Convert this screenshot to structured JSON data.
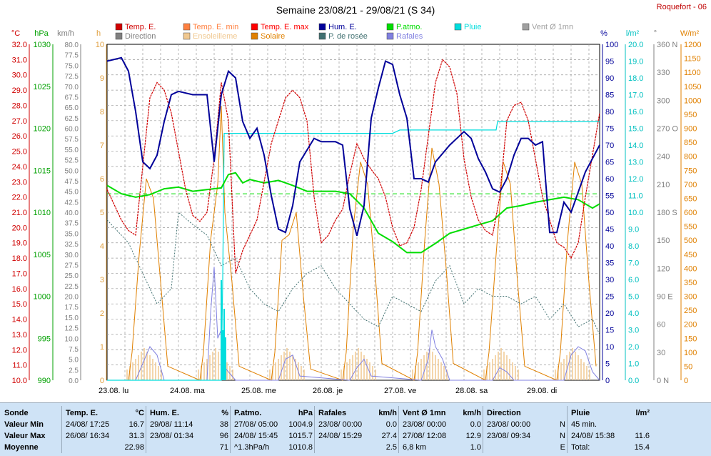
{
  "title": "Semaine 23/08/21 - 29/08/21 (S 34)",
  "station": "Roquefort - 06",
  "colors": {
    "temp": "#d00000",
    "tmin": "#ff8040",
    "tmax": "#ff0000",
    "hum": "#000099",
    "patm": "#00dd00",
    "rain": "#00dddd",
    "wind": "#a0a0a0",
    "dir": "#808080",
    "sun": "#f0c890",
    "solar": "#e08000",
    "dew": "#407070",
    "gust": "#8080e0"
  },
  "legend": [
    {
      "label": "Temp. E.",
      "color": "#d00000",
      "row": 0,
      "col": 0
    },
    {
      "label": "Temp. E. min",
      "color": "#ff8040",
      "row": 0,
      "col": 1
    },
    {
      "label": "Temp. E. max",
      "color": "#ff0000",
      "row": 0,
      "col": 2
    },
    {
      "label": "Hum. E.",
      "color": "#000099",
      "row": 0,
      "col": 3
    },
    {
      "label": "P.atmo.",
      "color": "#00dd00",
      "row": 0,
      "col": 4
    },
    {
      "label": "Pluie",
      "color": "#00dddd",
      "row": 0,
      "col": 5
    },
    {
      "label": "Vent Ø 1mn",
      "color": "#a0a0a0",
      "row": 0,
      "col": 6
    },
    {
      "label": "Direction",
      "color": "#808080",
      "row": 1,
      "col": 0
    },
    {
      "label": "Ensoleilleme",
      "color": "#f0c890",
      "row": 1,
      "col": 1
    },
    {
      "label": "Solaire",
      "color": "#e08000",
      "row": 1,
      "col": 2
    },
    {
      "label": "P. de rosée",
      "color": "#407070",
      "row": 1,
      "col": 3
    },
    {
      "label": "Rafales",
      "color": "#8080e0",
      "row": 1,
      "col": 4
    }
  ],
  "chart_data": {
    "type": "line",
    "grid": true,
    "x_ticks": [
      "23.08.  lu",
      "24.08.  ma",
      "25.08.  me",
      "26.08.  je",
      "27.08.  ve",
      "28.08.  sa",
      "29.08.  di"
    ],
    "axes": {
      "temp": {
        "unit": "°C",
        "range": [
          10,
          32
        ],
        "ticks": [
          "10.0",
          "11.0",
          "12.0",
          "13.0",
          "14.0",
          "15.0",
          "16.0",
          "17.0",
          "18.0",
          "19.0",
          "20.0",
          "21.0",
          "22.0",
          "23.0",
          "24.0",
          "25.0",
          "26.0",
          "27.0",
          "28.0",
          "29.0",
          "30.0",
          "31.0",
          "32.0"
        ]
      },
      "pressure": {
        "unit": "hPa",
        "range": [
          990,
          1030
        ],
        "ticks": [
          "990",
          "995",
          "1000",
          "1005",
          "1010",
          "1015",
          "1020",
          "1025",
          "1030"
        ]
      },
      "wind": {
        "unit": "km/h",
        "range": [
          0,
          80
        ],
        "ticks": [
          "0.0",
          "2.5",
          "5.0",
          "7.5",
          "10.0",
          "12.5",
          "15.0",
          "17.5",
          "20.0",
          "22.5",
          "25.0",
          "27.5",
          "30.0",
          "32.5",
          "35.0",
          "37.5",
          "40.0",
          "42.5",
          "45.0",
          "47.5",
          "50.0",
          "52.5",
          "55.0",
          "57.5",
          "60.0",
          "62.5",
          "65.0",
          "67.5",
          "70.0",
          "72.5",
          "75.0",
          "77.5",
          "80.0"
        ]
      },
      "sun_hours": {
        "unit": "h",
        "range": [
          0,
          10
        ],
        "ticks": [
          "0",
          "1",
          "2",
          "3",
          "4",
          "5",
          "6",
          "7",
          "8",
          "9",
          "10"
        ]
      },
      "humidity": {
        "unit": "%",
        "range": [
          0,
          100
        ],
        "ticks": [
          "0",
          "5",
          "10",
          "15",
          "20",
          "25",
          "30",
          "35",
          "40",
          "45",
          "50",
          "55",
          "60",
          "65",
          "70",
          "75",
          "80",
          "85",
          "90",
          "95",
          "100"
        ]
      },
      "rain": {
        "unit": "l/m²",
        "range": [
          0,
          20
        ],
        "ticks": [
          "0.0",
          "1.0",
          "2.0",
          "3.0",
          "4.0",
          "5.0",
          "6.0",
          "7.0",
          "8.0",
          "9.0",
          "10.0",
          "11.0",
          "12.0",
          "13.0",
          "14.0",
          "15.0",
          "16.0",
          "17.0",
          "18.0",
          "19.0",
          "20.0"
        ]
      },
      "direction": {
        "unit": "°",
        "range": [
          0,
          360
        ],
        "ticks": [
          "0  N",
          "30",
          "60",
          "90  E",
          "120",
          "150",
          "180  S",
          "210",
          "240",
          "270  O",
          "300",
          "330",
          "360  N"
        ]
      },
      "solar": {
        "unit": "W/m²",
        "range": [
          0,
          1200
        ],
        "ticks": [
          "0",
          "50",
          "100",
          "150",
          "200",
          "250",
          "300",
          "350",
          "400",
          "450",
          "500",
          "550",
          "600",
          "650",
          "700",
          "750",
          "800",
          "850",
          "900",
          "950",
          "1000",
          "1050",
          "1100",
          "1150",
          "1200"
        ]
      }
    },
    "series": [
      {
        "name": "Temp. E.",
        "axis": "temp",
        "x": [
          0,
          0.1,
          0.2,
          0.3,
          0.4,
          0.5,
          0.6,
          0.7,
          0.8,
          0.9,
          1.0,
          1.1,
          1.2,
          1.3,
          1.4,
          1.5,
          1.6,
          1.7,
          1.8,
          1.9,
          2.0,
          2.1,
          2.2,
          2.3,
          2.4,
          2.5,
          2.6,
          2.7,
          2.8,
          2.9,
          3.0,
          3.1,
          3.2,
          3.3,
          3.4,
          3.5,
          3.6,
          3.7,
          3.8,
          3.9,
          4.0,
          4.1,
          4.2,
          4.3,
          4.4,
          4.5,
          4.6,
          4.7,
          4.8,
          4.9,
          5.0,
          5.1,
          5.2,
          5.3,
          5.4,
          5.5,
          5.6,
          5.7,
          5.8,
          5.9,
          6.0,
          6.1,
          6.2,
          6.3,
          6.4,
          6.5,
          6.6,
          6.7,
          6.9
        ],
        "values": [
          22.5,
          21.5,
          20.5,
          19.8,
          19.5,
          24,
          28.5,
          29.5,
          29,
          27.5,
          25,
          22.5,
          20.8,
          20.4,
          21,
          24.5,
          29.5,
          27,
          17,
          18.5,
          19.5,
          20.5,
          23,
          25.5,
          27,
          28.5,
          29,
          28.5,
          27,
          22,
          19,
          19.5,
          20.5,
          21.2,
          23.5,
          25.5,
          24.5,
          23.8,
          23.2,
          22,
          20,
          18.8,
          19,
          20,
          22.5,
          26,
          29.5,
          31,
          30.5,
          28.8,
          24.5,
          22,
          20.5,
          19.8,
          19.5,
          22,
          27,
          28,
          28.2,
          27,
          24.5,
          22,
          20.5,
          19,
          18.7,
          18,
          19,
          22,
          27.5
        ]
      },
      {
        "name": "Hum. E.",
        "axis": "humidity",
        "x": [
          0,
          0.2,
          0.3,
          0.4,
          0.5,
          0.6,
          0.7,
          0.8,
          0.9,
          1.0,
          1.2,
          1.4,
          1.5,
          1.6,
          1.7,
          1.8,
          1.9,
          2.0,
          2.1,
          2.2,
          2.3,
          2.4,
          2.5,
          2.6,
          2.7,
          2.9,
          3.0,
          3.1,
          3.2,
          3.3,
          3.4,
          3.5,
          3.6,
          3.7,
          3.8,
          3.9,
          4.0,
          4.1,
          4.2,
          4.3,
          4.4,
          4.5,
          4.6,
          4.8,
          5.0,
          5.1,
          5.2,
          5.3,
          5.4,
          5.5,
          5.6,
          5.7,
          5.8,
          5.9,
          6.0,
          6.1,
          6.2,
          6.3,
          6.4,
          6.5,
          6.6,
          6.7,
          6.8,
          6.9
        ],
        "values": [
          95,
          96,
          92,
          80,
          65,
          63,
          67,
          77,
          85,
          86,
          85,
          85,
          65,
          85,
          92,
          90,
          77,
          72,
          75,
          67,
          55,
          45,
          44,
          52,
          65,
          72,
          71,
          71,
          71,
          70,
          51,
          43,
          52,
          78,
          87,
          95,
          94,
          85,
          78,
          60,
          60,
          59,
          65,
          70,
          74,
          72,
          66,
          62,
          57,
          56,
          60,
          67,
          72,
          72,
          70,
          71,
          44,
          44,
          53,
          50,
          56,
          62,
          66,
          70
        ]
      },
      {
        "name": "P.atmo.",
        "axis": "pressure",
        "x": [
          0,
          0.2,
          0.4,
          0.6,
          0.8,
          1.0,
          1.2,
          1.4,
          1.6,
          1.7,
          1.8,
          1.9,
          2.0,
          2.2,
          2.4,
          2.6,
          2.8,
          3.0,
          3.2,
          3.4,
          3.6,
          3.8,
          4.0,
          4.2,
          4.4,
          4.6,
          4.8,
          5.0,
          5.2,
          5.4,
          5.6,
          5.8,
          6.0,
          6.2,
          6.4,
          6.6,
          6.8,
          6.9
        ],
        "values": [
          1013.2,
          1012.2,
          1011.8,
          1012.1,
          1012.8,
          1013,
          1012.5,
          1012.7,
          1012.9,
          1014.5,
          1014.7,
          1013.5,
          1013.9,
          1013.5,
          1013.8,
          1013.2,
          1012.5,
          1012.5,
          1012.5,
          1012.2,
          1010.5,
          1007.5,
          1006.5,
          1005.2,
          1005.2,
          1006.3,
          1007.5,
          1008,
          1008.5,
          1009,
          1010.5,
          1010.8,
          1011.2,
          1011.5,
          1011.8,
          1011.5,
          1010.5,
          1011
        ]
      },
      {
        "name": "Pluie",
        "axis": "rain",
        "x": [
          0,
          1.5,
          1.6,
          1.62,
          1.64,
          2.0,
          3.0,
          4.0,
          4.1,
          5.0,
          5.45,
          5.47,
          6.0,
          6.9
        ],
        "values": [
          0,
          0,
          0,
          6.0,
          14.7,
          14.7,
          14.7,
          14.7,
          14.9,
          14.9,
          14.9,
          15.4,
          15.4,
          15.4
        ]
      },
      {
        "name": "P. de rosée",
        "axis": "temp",
        "x": [
          0,
          0.3,
          0.5,
          0.7,
          0.9,
          1.0,
          1.2,
          1.4,
          1.6,
          1.8,
          2.0,
          2.2,
          2.4,
          2.6,
          2.8,
          3.0,
          3.2,
          3.4,
          3.6,
          3.8,
          4.0,
          4.2,
          4.4,
          4.6,
          4.8,
          5.0,
          5.2,
          5.4,
          5.6,
          5.8,
          6.0,
          6.2,
          6.4,
          6.6,
          6.8,
          6.9
        ],
        "values": [
          20.5,
          19,
          17,
          15,
          16,
          21,
          20.2,
          19.5,
          17.5,
          18,
          16,
          15,
          14.5,
          16,
          17,
          17.5,
          16,
          15,
          14,
          13.5,
          15.5,
          15,
          14.5,
          16.5,
          17.5,
          15,
          16,
          15.5,
          15.5,
          15,
          15.5,
          14,
          15,
          13.5,
          14,
          13
        ]
      },
      {
        "name": "Rafales",
        "axis": "wind",
        "x": [
          0,
          0.4,
          0.5,
          0.6,
          0.7,
          0.8,
          1.4,
          1.45,
          1.5,
          1.55,
          1.6,
          1.65,
          1.8,
          2.4,
          2.5,
          2.6,
          2.7,
          3.4,
          3.5,
          3.6,
          3.7,
          4.4,
          4.5,
          4.55,
          4.6,
          4.7,
          4.8,
          5.4,
          5.5,
          5.6,
          5.7,
          6.4,
          6.5,
          6.6,
          6.7,
          6.8,
          6.9
        ],
        "values": [
          0,
          0,
          4,
          8,
          6,
          0,
          0,
          16,
          27,
          10,
          12,
          3,
          0,
          0,
          5,
          6,
          1,
          0,
          3,
          5,
          1,
          0,
          5,
          12,
          8,
          5,
          0,
          0,
          3,
          2,
          0,
          0,
          6,
          8,
          7,
          2,
          0
        ]
      },
      {
        "name": "Solaire",
        "axis": "solar",
        "x": [
          0,
          0.3,
          0.35,
          0.45,
          0.55,
          0.65,
          0.75,
          0.85,
          1.3,
          1.35,
          1.45,
          1.55,
          1.6,
          1.65,
          1.75,
          1.85,
          2.3,
          2.35,
          2.45,
          2.55,
          2.65,
          2.75,
          2.85,
          3.3,
          3.35,
          3.45,
          3.55,
          3.65,
          3.75,
          3.85,
          4.3,
          4.35,
          4.45,
          4.55,
          4.65,
          4.75,
          4.85,
          5.3,
          5.35,
          5.45,
          5.55,
          5.65,
          5.75,
          5.85,
          6.3,
          6.35,
          6.45,
          6.55,
          6.65,
          6.75,
          6.85
        ],
        "values": [
          0,
          0,
          100,
          450,
          720,
          650,
          350,
          50,
          0,
          100,
          500,
          700,
          980,
          600,
          350,
          50,
          0,
          100,
          500,
          520,
          600,
          300,
          40,
          0,
          100,
          550,
          780,
          700,
          400,
          60,
          0,
          100,
          500,
          830,
          700,
          400,
          60,
          0,
          100,
          450,
          780,
          700,
          350,
          50,
          0,
          100,
          500,
          780,
          700,
          350,
          50
        ]
      }
    ]
  },
  "stats": {
    "headers": [
      {
        "label": "Sonde",
        "unit": ""
      },
      {
        "label": "Temp. E.",
        "unit": "°C"
      },
      {
        "label": "Hum. E.",
        "unit": "%"
      },
      {
        "label": "P.atmo.",
        "unit": "hPa"
      },
      {
        "label": "Rafales",
        "unit": "km/h"
      },
      {
        "label": "Vent Ø 1mn",
        "unit": "km/h"
      },
      {
        "label": "Direction",
        "unit": ""
      },
      {
        "label": "Pluie",
        "unit": "l/m²"
      }
    ],
    "row_labels": [
      "Valeur Min",
      "Valeur Max",
      "Moyenne"
    ],
    "cells": [
      [
        [
          "24/08/  17:25",
          "16.7"
        ],
        [
          "26/08/  16:34",
          "31.3"
        ],
        [
          "",
          "22.98"
        ]
      ],
      [
        [
          "29/08/  11:14",
          "38"
        ],
        [
          "23/08/  01:34",
          "96"
        ],
        [
          "",
          "71"
        ]
      ],
      [
        [
          "27/08/  05:00",
          "1004.9"
        ],
        [
          "24/08/  15:45",
          "1015.7"
        ],
        [
          "^1.3hPa/h",
          "1010.8"
        ]
      ],
      [
        [
          "23/08/  00:00",
          "0.0"
        ],
        [
          "24/08/  15:29",
          "27.4"
        ],
        [
          "",
          "2.5"
        ]
      ],
      [
        [
          "23/08/  00:00",
          "0.0"
        ],
        [
          "27/08/  12:08",
          "12.9"
        ],
        [
          "6,8 km",
          "1.0"
        ]
      ],
      [
        [
          "23/08/  00:00",
          "N"
        ],
        [
          "23/08/  09:34",
          "N"
        ],
        [
          "",
          "E"
        ]
      ],
      [
        [
          "45 min.",
          ""
        ],
        [
          "24/08/  15:38",
          "11.6"
        ],
        [
          "Total:",
          "15.4"
        ]
      ]
    ]
  }
}
